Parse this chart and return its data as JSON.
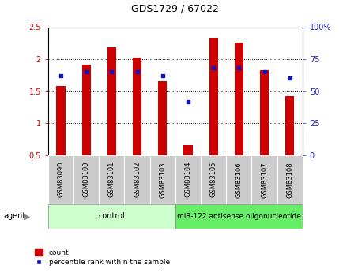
{
  "title": "GDS1729 / 67022",
  "samples": [
    "GSM83090",
    "GSM83100",
    "GSM83101",
    "GSM83102",
    "GSM83103",
    "GSM83104",
    "GSM83105",
    "GSM83106",
    "GSM83107",
    "GSM83108"
  ],
  "red_values": [
    1.58,
    1.91,
    2.18,
    2.02,
    1.65,
    0.65,
    2.33,
    2.26,
    1.83,
    1.42
  ],
  "blue_values": [
    62,
    65,
    65,
    65,
    62,
    42,
    68,
    68,
    65,
    60
  ],
  "ylim_left": [
    0.5,
    2.5
  ],
  "ylim_right": [
    0,
    100
  ],
  "yticks_left": [
    0.5,
    1.0,
    1.5,
    2.0,
    2.5
  ],
  "ytick_labels_left": [
    "0.5",
    "1",
    "1.5",
    "2",
    "2.5"
  ],
  "yticks_right": [
    0,
    25,
    50,
    75,
    100
  ],
  "ytick_labels_right": [
    "0",
    "25",
    "50",
    "75",
    "100%"
  ],
  "n_control": 5,
  "n_treat": 5,
  "control_label": "control",
  "treatment_label": "miR-122 antisense oligonucleotide",
  "agent_label": "agent",
  "legend_red": "count",
  "legend_blue": "percentile rank within the sample",
  "bar_color": "#CC0000",
  "dot_color": "#1111CC",
  "control_bg": "#CCFFCC",
  "treatment_bg": "#66EE66",
  "sample_bg": "#CCCCCC",
  "bar_width": 0.35,
  "left_tick_color": "#CC0000",
  "right_tick_color": "#2222CC",
  "title_fontsize": 9,
  "tick_fontsize": 7,
  "label_fontsize": 6,
  "agent_fontsize": 7,
  "legend_fontsize": 6.5
}
